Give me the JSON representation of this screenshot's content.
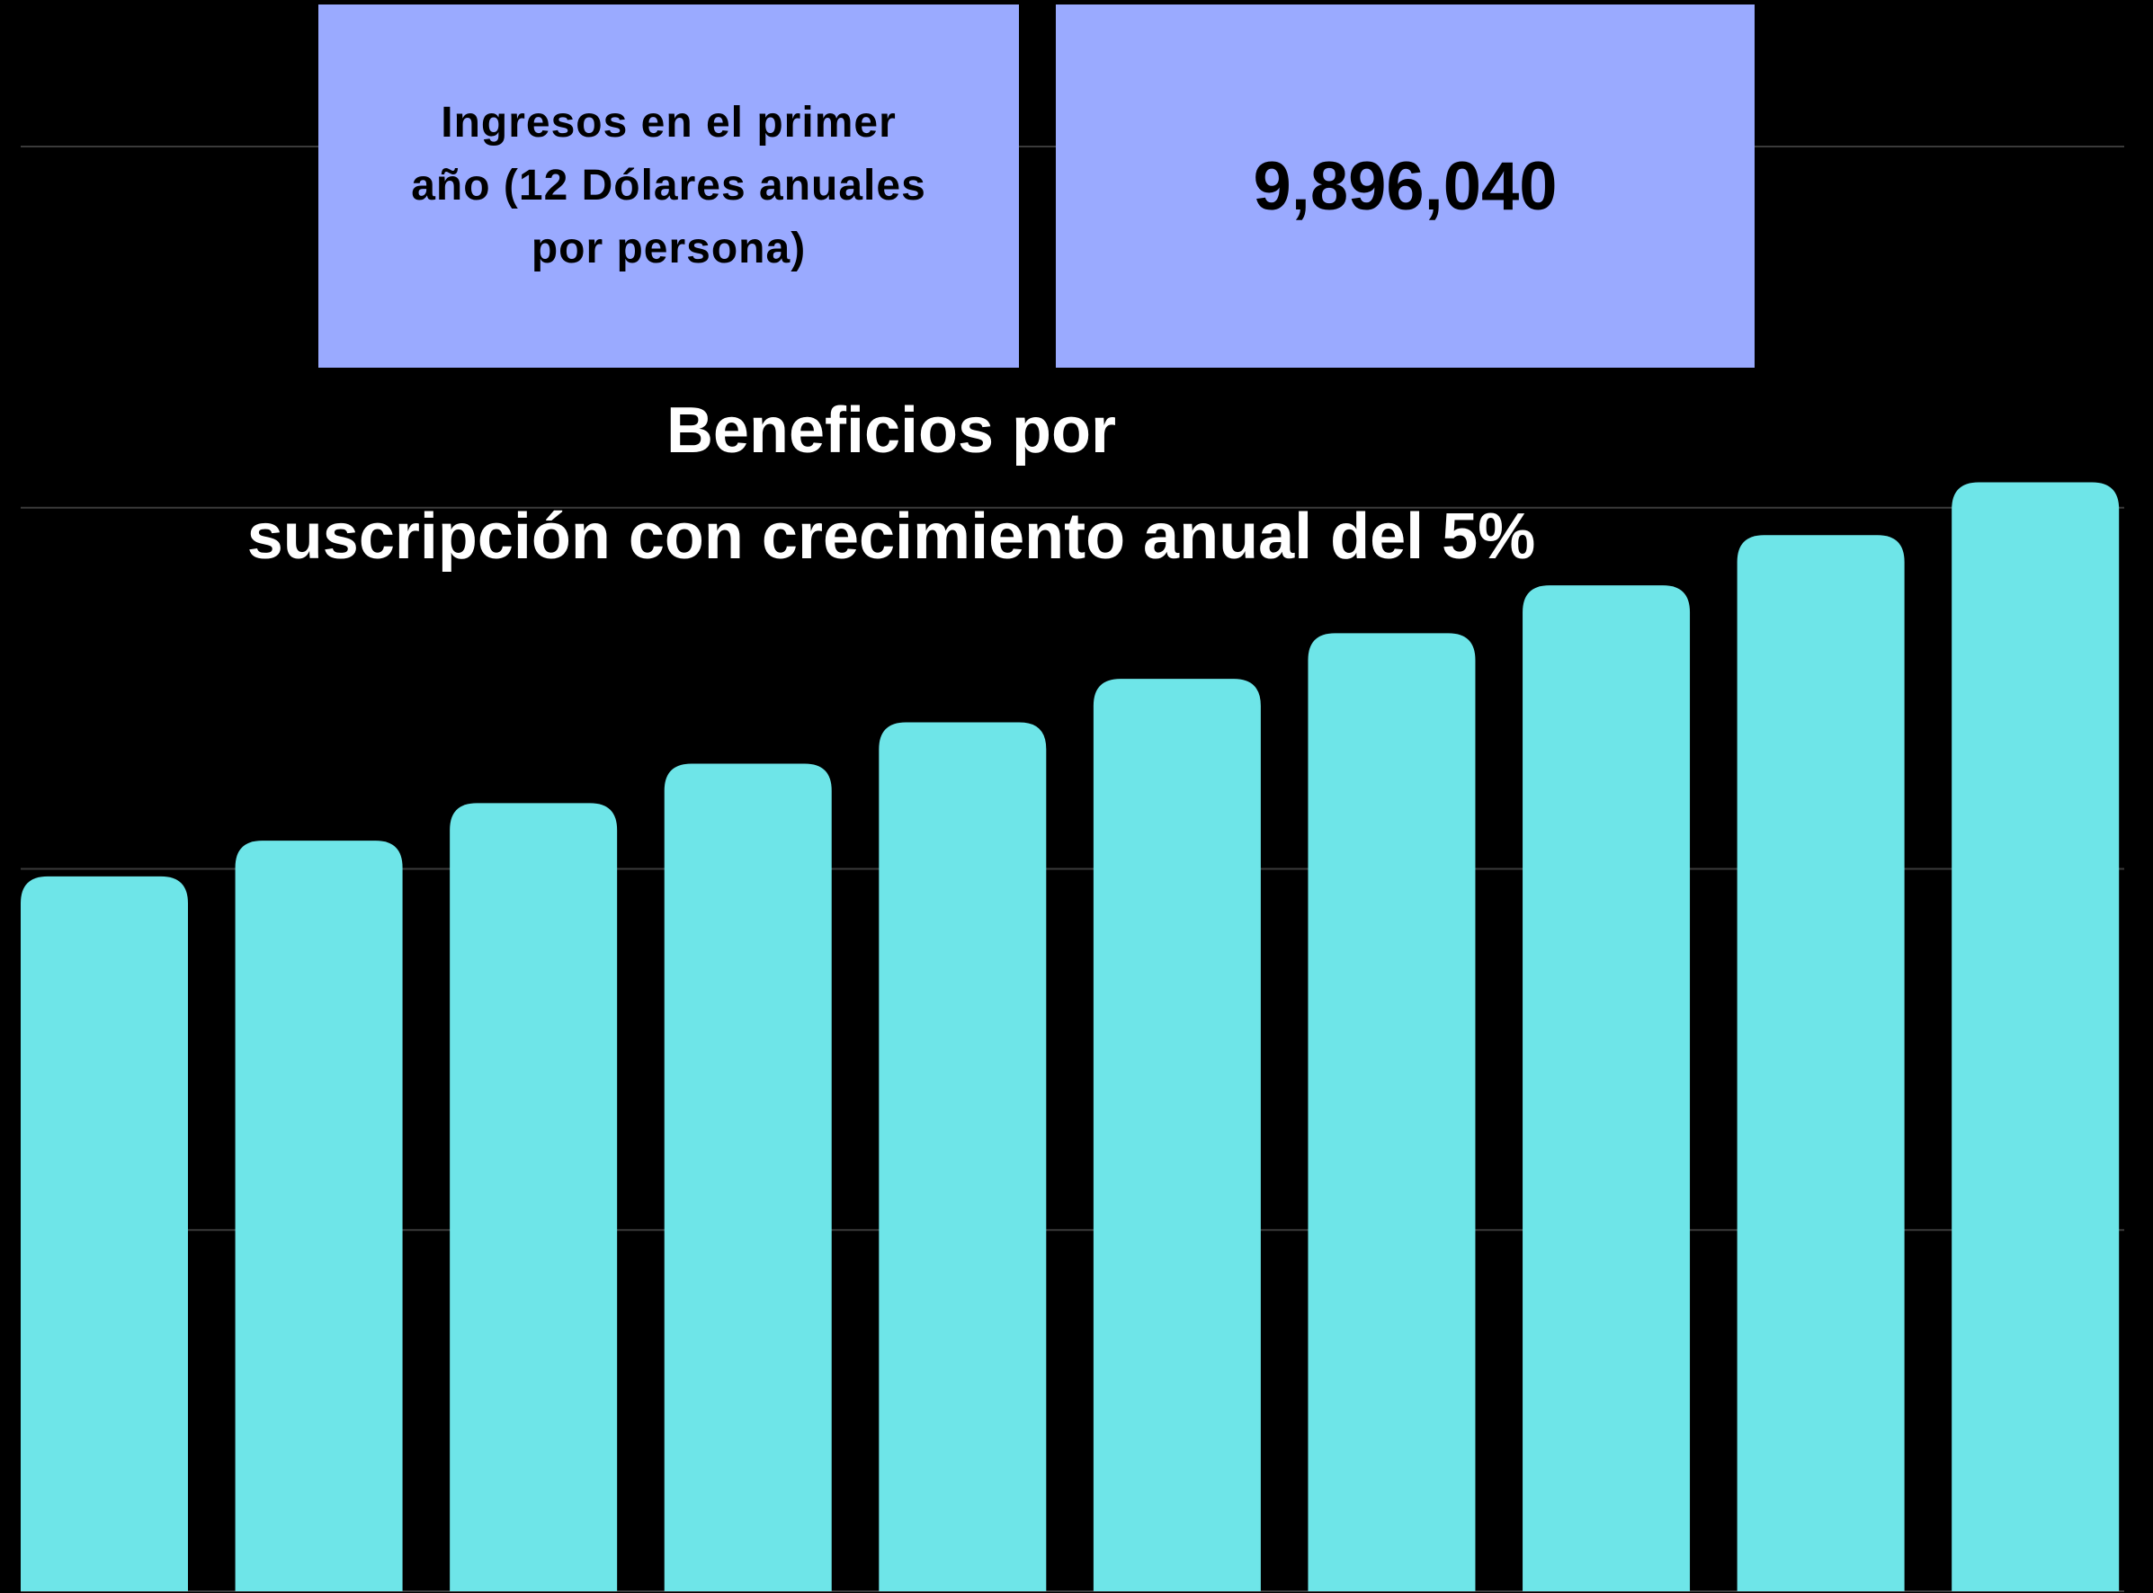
{
  "chart_data": {
    "type": "bar",
    "title": "Beneficios por\nsuscripción con crecimiento anual del 5%",
    "info_box": {
      "label": "Ingresos en el primer año (12 Dólares anuales por persona)",
      "value": "9,896,040"
    },
    "categories": [
      null,
      null,
      null,
      null,
      null,
      null,
      null,
      null,
      null,
      null
    ],
    "values": [
      9896040,
      10390842,
      10910384,
      11455903,
      12028698,
      12630133,
      13261640,
      13924722,
      14620958,
      15352006
    ],
    "color": "#6ee5e8",
    "ylim": [
      0,
      20000000
    ],
    "yticks": [
      0,
      5000000,
      10000000,
      15000000,
      20000000
    ],
    "grid": true
  }
}
